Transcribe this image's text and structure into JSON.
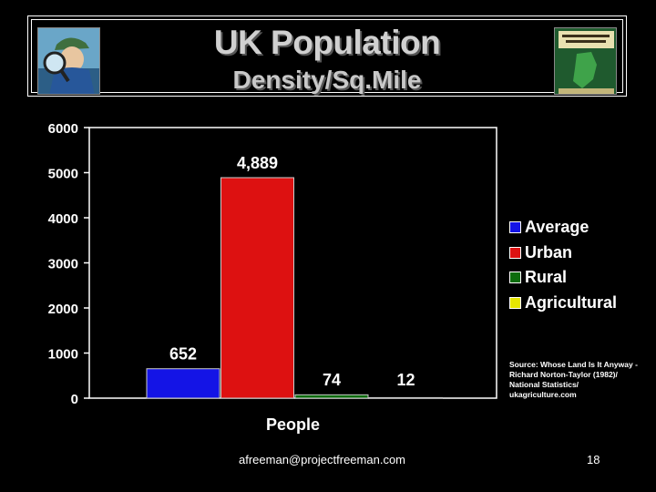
{
  "slide": {
    "email": "afreeman@projectfreeman.com",
    "page_number": "18",
    "source": "Source: Whose Land Is It Anyway - Richard Norton-Taylor (1982)/ National Statistics/ ukagriculture.com",
    "left_image_icon": "detective-magnifier-illustration",
    "right_image_icon": "book-cover-whose-land-is-it-anyway"
  },
  "chart_data": {
    "type": "bar",
    "title": "UK Population",
    "subtitle": "Density/Sq.Mile",
    "categories": [
      "People"
    ],
    "xlabel": "People",
    "ylabel": "",
    "ylim": [
      0,
      6000
    ],
    "yticks": [
      "0",
      "1000",
      "2000",
      "3000",
      "4000",
      "5000",
      "6000"
    ],
    "grid": false,
    "legend_position": "right",
    "series": [
      {
        "name": "Average",
        "values": [
          652
        ],
        "label": "652",
        "color": "#1414e6"
      },
      {
        "name": "Urban",
        "values": [
          4889
        ],
        "label": "4,889",
        "color": "#dd1111"
      },
      {
        "name": "Rural",
        "values": [
          74
        ],
        "label": "74",
        "color": "#0c6c0c"
      },
      {
        "name": "Agricultural",
        "values": [
          12
        ],
        "label": "12",
        "color": "#e6e600"
      }
    ]
  }
}
